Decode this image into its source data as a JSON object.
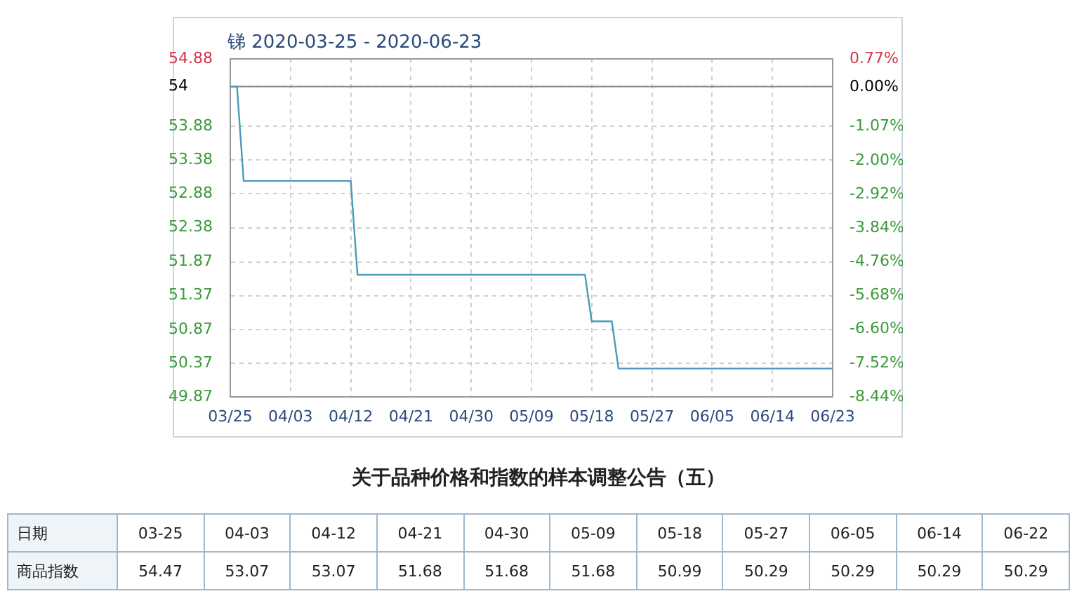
{
  "chart_data": [
    {
      "type": "line",
      "title": "锑 2020-03-25 - 2020-06-23",
      "x": [
        "--03-25",
        "--03-26",
        "--03-27",
        "--04-03",
        "--04-12",
        "--04-13",
        "--04-21",
        "--04-30",
        "--05-09",
        "--05-17",
        "--05-18",
        "--05-21",
        "--05-22",
        "--05-27",
        "--06-05",
        "--06-14",
        "--06-22",
        "--06-23"
      ],
      "series": [
        {
          "color": "#4a9ab8",
          "values": [
            54.47,
            54.47,
            53.07,
            53.07,
            53.07,
            51.68,
            51.68,
            51.68,
            51.68,
            51.68,
            50.99,
            50.99,
            50.29,
            50.29,
            50.29,
            50.29,
            50.29,
            50.29
          ]
        }
      ],
      "xlim": [
        "--03-25",
        "--06-23"
      ],
      "xticks": [
        {
          "value": "--03-25",
          "label": "03/25"
        },
        {
          "value": "--04-03",
          "label": "04/03"
        },
        {
          "value": "--04-12",
          "label": "04/12"
        },
        {
          "value": "--04-21",
          "label": "04/21"
        },
        {
          "value": "--04-30",
          "label": "04/30"
        },
        {
          "value": "--05-09",
          "label": "05/09"
        },
        {
          "value": "--05-18",
          "label": "05/18"
        },
        {
          "value": "--05-27",
          "label": "05/27"
        },
        {
          "value": "--06-05",
          "label": "06/05"
        },
        {
          "value": "--06-14",
          "label": "06/14"
        },
        {
          "value": "--06-23",
          "label": "06/23"
        }
      ],
      "ylim": [
        49.87,
        54.88
      ],
      "yticks": [
        54.88,
        {
          "value": 54.47,
          "label": "54"
        },
        53.88,
        53.38,
        52.88,
        52.38,
        51.87,
        51.37,
        50.87,
        50.37,
        49.87
      ],
      "y2lim": [
        -8.44,
        0.77
      ],
      "y2ticks": [
        {
          "value": 0.77,
          "label": "0.77%"
        },
        {
          "value": 0,
          "label": "0.00%"
        },
        {
          "value": -1.07,
          "label": "-1.07%"
        },
        {
          "value": -2,
          "label": "-2.00%"
        },
        {
          "value": -2.92,
          "label": "-2.92%"
        },
        {
          "value": -3.84,
          "label": "-3.84%"
        },
        {
          "value": -4.76,
          "label": "-4.76%"
        },
        {
          "value": -5.68,
          "label": "-5.68%"
        },
        {
          "value": -6.6,
          "label": "-6.60%"
        },
        {
          "value": -7.52,
          "label": "-7.52%"
        },
        {
          "value": -8.44,
          "label": "-8.44%"
        }
      ],
      "ref_lines": [
        {
          "axis": "y",
          "value": 54.47,
          "color": "#888888"
        }
      ],
      "grid": true,
      "legend": false,
      "marker": "none",
      "line_style": "solid"
    },
    {
      "type": "other",
      "title": "关于品种价格和指数的样本调整公告（五）",
      "xlabel": "日期",
      "ylabel": "商品指数",
      "categories": [
        "03-25",
        "04-03",
        "04-12",
        "04-21",
        "04-30",
        "05-09",
        "05-18",
        "05-27",
        "06-05",
        "06-14",
        "06-22"
      ],
      "values": [
        54.47,
        53.07,
        53.07,
        51.68,
        51.68,
        51.68,
        50.99,
        50.29,
        50.29,
        50.29,
        50.29
      ],
      "data_labels": true
    }
  ]
}
